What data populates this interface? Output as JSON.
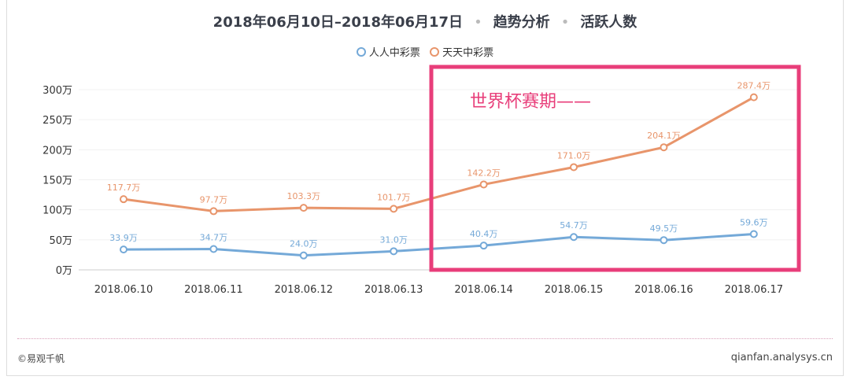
{
  "title": {
    "date_range": "2018年06月10日–2018年06月17日",
    "section": "趋势分析",
    "metric": "活跃人数"
  },
  "footer": {
    "copyright": "©易观千帆",
    "site": "qianfan.analysys.cn"
  },
  "annotation": {
    "text": "世界杯赛期——",
    "color": "#e83e7a"
  },
  "chart_data": {
    "type": "line",
    "categories": [
      "2018.06.10",
      "2018.06.11",
      "2018.06.12",
      "2018.06.13",
      "2018.06.14",
      "2018.06.15",
      "2018.06.16",
      "2018.06.17"
    ],
    "yticks": [
      "0万",
      "50万",
      "100万",
      "150万",
      "200万",
      "250万",
      "300万"
    ],
    "ylim": [
      0,
      300
    ],
    "grid": true,
    "legend_position": "top",
    "series": [
      {
        "name": "人人中彩票",
        "color": "#74a9d8",
        "values": [
          33.9,
          34.7,
          24.0,
          31.0,
          40.4,
          54.7,
          49.5,
          59.6
        ],
        "labels": [
          "33.9万",
          "34.7万",
          "24.0万",
          "31.0万",
          "40.4万",
          "54.7万",
          "49.5万",
          "59.6万"
        ]
      },
      {
        "name": "天天中彩票",
        "color": "#e8956b",
        "values": [
          117.7,
          97.7,
          103.3,
          101.7,
          142.2,
          171.0,
          204.1,
          287.4
        ],
        "labels": [
          "117.7万",
          "97.7万",
          "103.3万",
          "101.7万",
          "142.2万",
          "171.0万",
          "204.1万",
          "287.4万"
        ]
      }
    ]
  }
}
